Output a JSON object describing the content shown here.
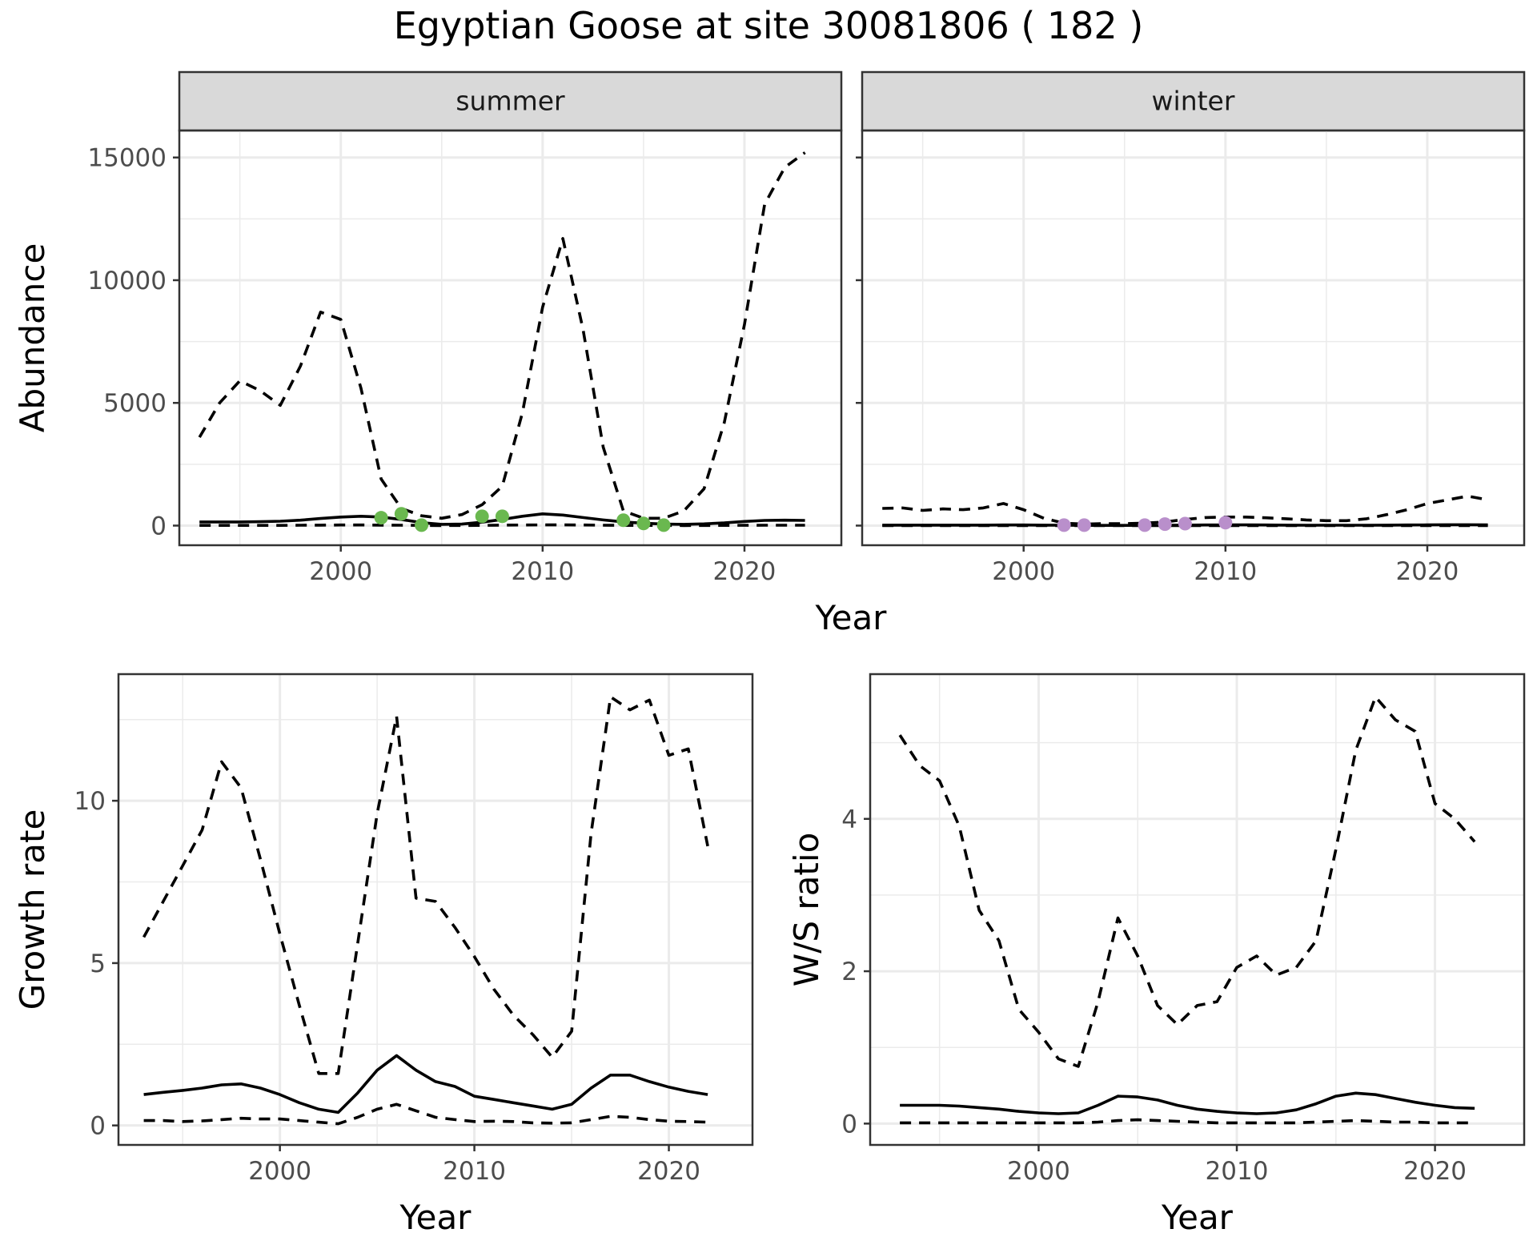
{
  "figure": {
    "title": "Egyptian Goose at site 30081806 ( 182 )",
    "shared_xlabel": "Year"
  },
  "chart_data": [
    {
      "id": "summer",
      "type": "line",
      "facet_label": "summer",
      "ylabel": "Abundance",
      "xlabel": "Year",
      "xlim": [
        1992,
        2024.8
      ],
      "ylim": [
        -800,
        16100
      ],
      "xticks": [
        2000,
        2010,
        2020
      ],
      "yticks": [
        0,
        5000,
        10000,
        15000
      ],
      "show_xtick_labels": true,
      "show_ytick_labels": true,
      "point_color": "#6ab84f",
      "series": [
        {
          "name": "mean",
          "style": "solid",
          "x": [
            1993,
            1994,
            1995,
            1996,
            1997,
            1998,
            1999,
            2000,
            2001,
            2002,
            2003,
            2004,
            2005,
            2006,
            2007,
            2008,
            2009,
            2010,
            2011,
            2012,
            2013,
            2014,
            2015,
            2016,
            2017,
            2018,
            2019,
            2020,
            2021,
            2022,
            2023
          ],
          "values": [
            150,
            150,
            150,
            160,
            180,
            220,
            290,
            350,
            380,
            350,
            250,
            120,
            50,
            60,
            140,
            250,
            380,
            480,
            430,
            330,
            230,
            150,
            100,
            60,
            50,
            70,
            110,
            170,
            210,
            220,
            210
          ]
        },
        {
          "name": "upper",
          "style": "dashed",
          "x": [
            1993,
            1994,
            1995,
            1996,
            1997,
            1998,
            1999,
            2000,
            2001,
            2002,
            2003,
            2004,
            2005,
            2006,
            2007,
            2008,
            2009,
            2010,
            2011,
            2012,
            2013,
            2014,
            2015,
            2016,
            2017,
            2018,
            2019,
            2020,
            2021,
            2022,
            2023
          ],
          "values": [
            3600,
            5000,
            5900,
            5500,
            4900,
            6500,
            8700,
            8400,
            5600,
            1900,
            700,
            400,
            300,
            450,
            850,
            1600,
            4600,
            8900,
            11700,
            8000,
            3200,
            600,
            300,
            300,
            600,
            1500,
            4200,
            8200,
            13100,
            14600,
            15200
          ]
        },
        {
          "name": "lower",
          "style": "dashed",
          "x": [
            1993,
            1994,
            1995,
            1996,
            1997,
            1998,
            1999,
            2000,
            2001,
            2002,
            2003,
            2004,
            2005,
            2006,
            2007,
            2008,
            2009,
            2010,
            2011,
            2012,
            2013,
            2014,
            2015,
            2016,
            2017,
            2018,
            2019,
            2020,
            2021,
            2022,
            2023
          ],
          "values": [
            10,
            10,
            10,
            10,
            10,
            15,
            20,
            25,
            25,
            20,
            15,
            8,
            4,
            5,
            10,
            20,
            25,
            30,
            30,
            25,
            15,
            10,
            8,
            5,
            4,
            5,
            8,
            12,
            15,
            15,
            15
          ]
        }
      ],
      "points": {
        "x": [
          2002,
          2003,
          2004,
          2007,
          2008,
          2014,
          2015,
          2016
        ],
        "values": [
          320,
          480,
          20,
          380,
          380,
          220,
          90,
          20
        ]
      }
    },
    {
      "id": "winter",
      "type": "line",
      "facet_label": "winter",
      "ylabel": "",
      "xlabel": "Year",
      "xlim": [
        1992,
        2024.8
      ],
      "ylim": [
        -800,
        16100
      ],
      "xticks": [
        2000,
        2010,
        2020
      ],
      "yticks": [
        0,
        5000,
        10000,
        15000
      ],
      "show_xtick_labels": true,
      "show_ytick_labels": false,
      "point_color": "#b98fcb",
      "series": [
        {
          "name": "mean",
          "style": "solid",
          "x": [
            1993,
            1994,
            1995,
            1996,
            1997,
            1998,
            1999,
            2000,
            2001,
            2002,
            2003,
            2004,
            2005,
            2006,
            2007,
            2008,
            2009,
            2010,
            2011,
            2012,
            2013,
            2014,
            2015,
            2016,
            2017,
            2018,
            2019,
            2020,
            2021,
            2022,
            2023
          ],
          "values": [
            20,
            20,
            20,
            20,
            20,
            20,
            25,
            25,
            20,
            15,
            10,
            10,
            10,
            10,
            15,
            20,
            25,
            30,
            30,
            25,
            20,
            15,
            15,
            15,
            15,
            20,
            25,
            30,
            35,
            35,
            30
          ]
        },
        {
          "name": "upper",
          "style": "dashed",
          "x": [
            1993,
            1994,
            1995,
            1996,
            1997,
            1998,
            1999,
            2000,
            2001,
            2002,
            2003,
            2004,
            2005,
            2006,
            2007,
            2008,
            2009,
            2010,
            2011,
            2012,
            2013,
            2014,
            2015,
            2016,
            2017,
            2018,
            2019,
            2020,
            2021,
            2022,
            2023
          ],
          "values": [
            700,
            720,
            620,
            680,
            650,
            720,
            900,
            650,
            300,
            100,
            60,
            80,
            80,
            100,
            150,
            250,
            330,
            350,
            350,
            320,
            280,
            230,
            200,
            200,
            280,
            450,
            650,
            900,
            1050,
            1200,
            1050
          ]
        },
        {
          "name": "lower",
          "style": "dashed",
          "x": [
            1993,
            1994,
            1995,
            1996,
            1997,
            1998,
            1999,
            2000,
            2001,
            2002,
            2003,
            2004,
            2005,
            2006,
            2007,
            2008,
            2009,
            2010,
            2011,
            2012,
            2013,
            2014,
            2015,
            2016,
            2017,
            2018,
            2019,
            2020,
            2021,
            2022,
            2023
          ],
          "values": [
            0,
            0,
            0,
            0,
            0,
            0,
            0,
            0,
            0,
            0,
            0,
            0,
            0,
            0,
            0,
            0,
            0,
            0,
            0,
            0,
            0,
            0,
            0,
            0,
            0,
            0,
            0,
            0,
            0,
            0,
            0
          ]
        }
      ],
      "points": {
        "x": [
          2002,
          2003,
          2006,
          2007,
          2008,
          2010
        ],
        "values": [
          20,
          20,
          20,
          60,
          80,
          120
        ]
      }
    },
    {
      "id": "growth",
      "type": "line",
      "facet_label": "",
      "ylabel": "Growth rate",
      "xlabel": "Year",
      "xlim": [
        1991.7,
        2024.3
      ],
      "ylim": [
        -0.6,
        13.9
      ],
      "xticks": [
        2000,
        2010,
        2020
      ],
      "yticks": [
        0,
        5,
        10
      ],
      "show_xtick_labels": true,
      "show_ytick_labels": true,
      "series": [
        {
          "name": "mean",
          "style": "solid",
          "x": [
            1993,
            1994,
            1995,
            1996,
            1997,
            1998,
            1999,
            2000,
            2001,
            2002,
            2003,
            2004,
            2005,
            2006,
            2007,
            2008,
            2009,
            2010,
            2011,
            2012,
            2013,
            2014,
            2015,
            2016,
            2017,
            2018,
            2019,
            2020,
            2021,
            2022
          ],
          "values": [
            0.95,
            1.02,
            1.08,
            1.15,
            1.25,
            1.28,
            1.15,
            0.95,
            0.7,
            0.5,
            0.4,
            1.0,
            1.7,
            2.15,
            1.7,
            1.35,
            1.2,
            0.9,
            0.8,
            0.7,
            0.6,
            0.5,
            0.65,
            1.15,
            1.55,
            1.55,
            1.35,
            1.18,
            1.05,
            0.95
          ]
        },
        {
          "name": "upper",
          "style": "dashed",
          "x": [
            1993,
            1994,
            1995,
            1996,
            1997,
            1998,
            1999,
            2000,
            2001,
            2002,
            2003,
            2004,
            2005,
            2006,
            2007,
            2008,
            2009,
            2010,
            2011,
            2012,
            2013,
            2014,
            2015,
            2016,
            2017,
            2018,
            2019,
            2020,
            2021,
            2022
          ],
          "values": [
            5.8,
            6.9,
            8.0,
            9.1,
            11.2,
            10.4,
            8.2,
            5.9,
            3.7,
            1.6,
            1.6,
            5.6,
            9.6,
            12.6,
            7.0,
            6.9,
            6.1,
            5.2,
            4.2,
            3.4,
            2.8,
            2.1,
            2.9,
            9.0,
            13.2,
            12.8,
            13.1,
            11.4,
            11.6,
            8.6
          ]
        },
        {
          "name": "lower",
          "style": "dashed",
          "x": [
            1993,
            1994,
            1995,
            1996,
            1997,
            1998,
            1999,
            2000,
            2001,
            2002,
            2003,
            2004,
            2005,
            2006,
            2007,
            2008,
            2009,
            2010,
            2011,
            2012,
            2013,
            2014,
            2015,
            2016,
            2017,
            2018,
            2019,
            2020,
            2021,
            2022
          ],
          "values": [
            0.15,
            0.15,
            0.12,
            0.14,
            0.18,
            0.22,
            0.2,
            0.2,
            0.15,
            0.1,
            0.05,
            0.25,
            0.5,
            0.65,
            0.45,
            0.25,
            0.18,
            0.12,
            0.13,
            0.12,
            0.08,
            0.07,
            0.08,
            0.18,
            0.28,
            0.25,
            0.18,
            0.13,
            0.12,
            0.1
          ]
        }
      ]
    },
    {
      "id": "ratio",
      "type": "line",
      "facet_label": "",
      "ylabel": "W/S ratio",
      "xlabel": "Year",
      "xlim": [
        1991.5,
        2024.5
      ],
      "ylim": [
        -0.28,
        5.9
      ],
      "xticks": [
        2000,
        2010,
        2020
      ],
      "yticks": [
        0,
        2,
        4
      ],
      "show_xtick_labels": true,
      "show_ytick_labels": true,
      "series": [
        {
          "name": "mean",
          "style": "solid",
          "x": [
            1993,
            1994,
            1995,
            1996,
            1997,
            1998,
            1999,
            2000,
            2001,
            2002,
            2003,
            2004,
            2005,
            2006,
            2007,
            2008,
            2009,
            2010,
            2011,
            2012,
            2013,
            2014,
            2015,
            2016,
            2017,
            2018,
            2019,
            2020,
            2021,
            2022
          ],
          "values": [
            0.24,
            0.24,
            0.24,
            0.23,
            0.21,
            0.19,
            0.16,
            0.14,
            0.13,
            0.14,
            0.24,
            0.36,
            0.35,
            0.31,
            0.24,
            0.19,
            0.16,
            0.14,
            0.13,
            0.14,
            0.18,
            0.26,
            0.36,
            0.4,
            0.38,
            0.33,
            0.28,
            0.24,
            0.21,
            0.2
          ]
        },
        {
          "name": "upper",
          "style": "dashed",
          "x": [
            1993,
            1994,
            1995,
            1996,
            1997,
            1998,
            1999,
            2000,
            2001,
            2002,
            2003,
            2004,
            2005,
            2006,
            2007,
            2008,
            2009,
            2010,
            2011,
            2012,
            2013,
            2014,
            2015,
            2016,
            2017,
            2018,
            2019,
            2020,
            2021,
            2022
          ],
          "values": [
            5.1,
            4.7,
            4.5,
            3.9,
            2.8,
            2.4,
            1.5,
            1.2,
            0.85,
            0.75,
            1.6,
            2.7,
            2.2,
            1.55,
            1.3,
            1.55,
            1.6,
            2.05,
            2.2,
            1.95,
            2.05,
            2.4,
            3.6,
            4.9,
            5.6,
            5.3,
            5.15,
            4.2,
            4.0,
            3.7
          ]
        },
        {
          "name": "lower",
          "style": "dashed",
          "x": [
            1993,
            1994,
            1995,
            1996,
            1997,
            1998,
            1999,
            2000,
            2001,
            2002,
            2003,
            2004,
            2005,
            2006,
            2007,
            2008,
            2009,
            2010,
            2011,
            2012,
            2013,
            2014,
            2015,
            2016,
            2017,
            2018,
            2019,
            2020,
            2021,
            2022
          ],
          "values": [
            0.01,
            0.01,
            0.01,
            0.01,
            0.01,
            0.01,
            0.01,
            0.01,
            0.01,
            0.01,
            0.02,
            0.04,
            0.05,
            0.04,
            0.03,
            0.02,
            0.01,
            0.01,
            0.01,
            0.01,
            0.01,
            0.02,
            0.03,
            0.04,
            0.03,
            0.02,
            0.02,
            0.01,
            0.01,
            0.01
          ]
        }
      ]
    }
  ]
}
